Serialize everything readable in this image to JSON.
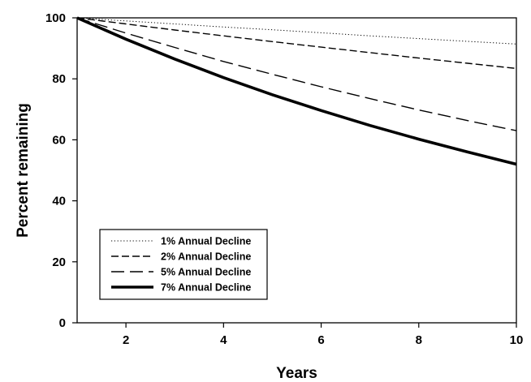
{
  "chart_data": {
    "type": "line",
    "xlabel": "Years",
    "ylabel": "Percent remaining",
    "xlim": [
      1,
      10
    ],
    "ylim": [
      0,
      100
    ],
    "xticks": [
      2,
      4,
      6,
      8,
      10
    ],
    "yticks": [
      0,
      20,
      40,
      60,
      80,
      100
    ],
    "grid": false,
    "legend_position": "bottom-left",
    "x": [
      1,
      2,
      3,
      4,
      5,
      6,
      7,
      8,
      9,
      10
    ],
    "series": [
      {
        "name": "1% Annual Decline",
        "style": "dotted",
        "values": [
          100,
          99,
          98,
          97,
          96.1,
          95.1,
          94.1,
          93.2,
          92.3,
          91.4
        ]
      },
      {
        "name": "2% Annual Decline",
        "style": "short-dash",
        "values": [
          100,
          98,
          96,
          94.1,
          92.2,
          90.4,
          88.6,
          86.8,
          85.1,
          83.4
        ]
      },
      {
        "name": "5% Annual Decline",
        "style": "long-dash",
        "values": [
          100,
          95,
          90.3,
          85.7,
          81.5,
          77.4,
          73.5,
          69.8,
          66.3,
          63
        ]
      },
      {
        "name": "7% Annual Decline",
        "style": "thick-solid",
        "values": [
          100,
          93,
          86.5,
          80.4,
          74.8,
          69.6,
          64.7,
          60.2,
          56,
          52
        ]
      }
    ]
  }
}
